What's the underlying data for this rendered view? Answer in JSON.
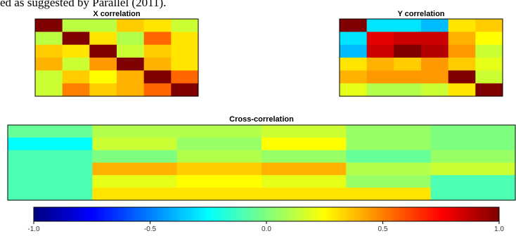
{
  "caption_text": "ed as suggested by Parallel (2011).",
  "chart_data": [
    {
      "type": "heatmap",
      "title": "X correlation",
      "rows": 6,
      "cols": 6,
      "values": [
        [
          1.0,
          0.12,
          0.12,
          0.35,
          0.3,
          0.15
        ],
        [
          0.12,
          1.0,
          0.3,
          0.1,
          0.55,
          0.3
        ],
        [
          0.35,
          0.3,
          1.0,
          0.15,
          0.35,
          0.3
        ],
        [
          0.4,
          0.15,
          0.45,
          1.0,
          0.4,
          0.3
        ],
        [
          0.15,
          0.35,
          0.25,
          0.4,
          1.0,
          0.55
        ],
        [
          0.15,
          0.5,
          0.35,
          0.4,
          0.55,
          1.0
        ]
      ]
    },
    {
      "type": "heatmap",
      "title": "Y correlation",
      "rows": 6,
      "cols": 6,
      "values": [
        [
          1.0,
          -0.3,
          -0.3,
          -0.38,
          0.3,
          0.35
        ],
        [
          -0.3,
          0.8,
          0.85,
          0.85,
          0.4,
          0.25
        ],
        [
          -0.38,
          0.85,
          1.0,
          0.9,
          0.45,
          0.15
        ],
        [
          0.3,
          0.4,
          0.35,
          0.45,
          0.35,
          0.2
        ],
        [
          0.4,
          0.45,
          0.45,
          0.45,
          1.0,
          0.15
        ],
        [
          0.2,
          0.1,
          0.1,
          0.15,
          0.3,
          1.0
        ]
      ],
      "note": "approximate diagonal/off-diagonal reading"
    },
    {
      "type": "heatmap",
      "title": "Cross-correlation",
      "rows": 6,
      "cols": 6,
      "values": [
        [
          -0.05,
          0.1,
          0.1,
          0.15,
          0.05,
          0.0
        ],
        [
          -0.25,
          0.15,
          0.05,
          0.25,
          0.05,
          0.0
        ],
        [
          -0.1,
          0.0,
          0.1,
          0.05,
          -0.05,
          0.05
        ],
        [
          -0.1,
          0.4,
          0.35,
          0.4,
          0.1,
          0.15
        ],
        [
          -0.1,
          0.2,
          0.25,
          0.2,
          0.05,
          -0.1
        ],
        [
          -0.1,
          0.3,
          0.3,
          0.3,
          0.3,
          -0.1
        ]
      ]
    }
  ],
  "colorbar": {
    "min": -1.0,
    "max": 1.0,
    "tick_labels": [
      "-1.0",
      "-0.5",
      "0.0",
      "0.5",
      "1.0"
    ],
    "tick_values": [
      -1.0,
      -0.5,
      0.0,
      0.5,
      1.0
    ],
    "colormap": [
      "#00007F",
      "#0000FF",
      "#007FFF",
      "#00FFFF",
      "#7FFF7F",
      "#FFFF00",
      "#FF7F00",
      "#FF0000",
      "#7F0000"
    ]
  }
}
